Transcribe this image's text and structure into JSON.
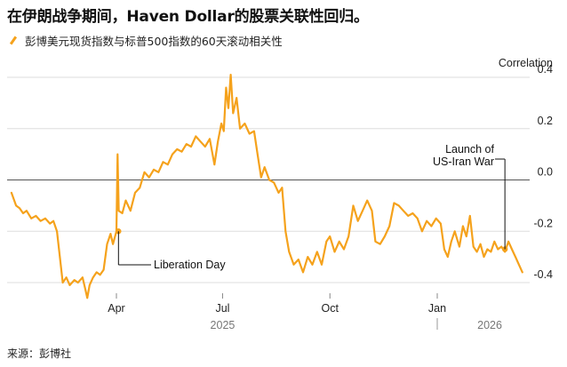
{
  "title": "在伊朗战争期间，Haven Dollar的股票关联性回归。",
  "source": "来源：彭博社",
  "colors": {
    "series": "#f5a21c",
    "grid": "#dddddd",
    "zero": "#555555",
    "text": "#222222"
  },
  "chart_data": {
    "type": "line",
    "y_axis_title": "Correlation",
    "ylim": [
      -0.45,
      0.45
    ],
    "yticks": [
      0.4,
      0.2,
      0.0,
      -0.2,
      -0.4
    ],
    "ytick_labels": [
      "0.4",
      "0.2",
      "0.0",
      "-0.2",
      "-0.4"
    ],
    "xlim": [
      "2025-01-01",
      "2026-03-18"
    ],
    "xticks": [
      {
        "date": "2025-04-01",
        "label": "Apr"
      },
      {
        "date": "2025-07-01",
        "label": "Jul"
      },
      {
        "date": "2025-10-01",
        "label": "Oct"
      },
      {
        "date": "2026-01-01",
        "label": "Jan"
      }
    ],
    "years": [
      {
        "date": "2025-07-01",
        "label": "2025"
      },
      {
        "date": "2026-02-15",
        "label": "2026"
      }
    ],
    "grid": true,
    "series": [
      {
        "name": "彭博美元现货指数与标普500指数的60天滚动相关性",
        "points": [
          [
            "2025-01-01",
            -0.05
          ],
          [
            "2025-01-05",
            -0.1
          ],
          [
            "2025-01-08",
            -0.11
          ],
          [
            "2025-01-11",
            -0.13
          ],
          [
            "2025-01-14",
            -0.12
          ],
          [
            "2025-01-18",
            -0.15
          ],
          [
            "2025-01-22",
            -0.14
          ],
          [
            "2025-01-26",
            -0.16
          ],
          [
            "2025-01-30",
            -0.15
          ],
          [
            "2025-02-03",
            -0.17
          ],
          [
            "2025-02-06",
            -0.16
          ],
          [
            "2025-02-09",
            -0.2
          ],
          [
            "2025-02-12",
            -0.32
          ],
          [
            "2025-02-14",
            -0.4
          ],
          [
            "2025-02-17",
            -0.38
          ],
          [
            "2025-02-20",
            -0.41
          ],
          [
            "2025-02-24",
            -0.39
          ],
          [
            "2025-02-27",
            -0.4
          ],
          [
            "2025-03-03",
            -0.38
          ],
          [
            "2025-03-05",
            -0.42
          ],
          [
            "2025-03-07",
            -0.46
          ],
          [
            "2025-03-09",
            -0.41
          ],
          [
            "2025-03-12",
            -0.38
          ],
          [
            "2025-03-15",
            -0.36
          ],
          [
            "2025-03-18",
            -0.37
          ],
          [
            "2025-03-21",
            -0.35
          ],
          [
            "2025-03-24",
            -0.25
          ],
          [
            "2025-03-27",
            -0.21
          ],
          [
            "2025-03-29",
            -0.25
          ],
          [
            "2025-04-01",
            -0.2
          ],
          [
            "2025-04-02",
            0.1
          ],
          [
            "2025-04-03",
            -0.12
          ],
          [
            "2025-04-06",
            -0.13
          ],
          [
            "2025-04-09",
            -0.08
          ],
          [
            "2025-04-13",
            -0.12
          ],
          [
            "2025-04-17",
            -0.05
          ],
          [
            "2025-04-21",
            -0.03
          ],
          [
            "2025-04-25",
            0.03
          ],
          [
            "2025-04-29",
            0.01
          ],
          [
            "2025-05-03",
            0.04
          ],
          [
            "2025-05-07",
            0.03
          ],
          [
            "2025-05-11",
            0.07
          ],
          [
            "2025-05-15",
            0.06
          ],
          [
            "2025-05-19",
            0.1
          ],
          [
            "2025-05-23",
            0.12
          ],
          [
            "2025-05-27",
            0.11
          ],
          [
            "2025-05-31",
            0.14
          ],
          [
            "2025-06-04",
            0.13
          ],
          [
            "2025-06-08",
            0.17
          ],
          [
            "2025-06-12",
            0.15
          ],
          [
            "2025-06-16",
            0.13
          ],
          [
            "2025-06-20",
            0.16
          ],
          [
            "2025-06-24",
            0.06
          ],
          [
            "2025-06-27",
            0.15
          ],
          [
            "2025-06-30",
            0.22
          ],
          [
            "2025-07-02",
            0.19
          ],
          [
            "2025-07-04",
            0.36
          ],
          [
            "2025-07-06",
            0.28
          ],
          [
            "2025-07-08",
            0.41
          ],
          [
            "2025-07-10",
            0.26
          ],
          [
            "2025-07-13",
            0.32
          ],
          [
            "2025-07-16",
            0.2
          ],
          [
            "2025-07-20",
            0.22
          ],
          [
            "2025-07-24",
            0.18
          ],
          [
            "2025-07-28",
            0.19
          ],
          [
            "2025-07-31",
            0.1
          ],
          [
            "2025-08-03",
            0.01
          ],
          [
            "2025-08-06",
            0.05
          ],
          [
            "2025-08-10",
            0.0
          ],
          [
            "2025-08-14",
            -0.01
          ],
          [
            "2025-08-18",
            -0.05
          ],
          [
            "2025-08-21",
            -0.03
          ],
          [
            "2025-08-24",
            -0.2
          ],
          [
            "2025-08-27",
            -0.28
          ],
          [
            "2025-08-31",
            -0.33
          ],
          [
            "2025-09-04",
            -0.31
          ],
          [
            "2025-09-08",
            -0.36
          ],
          [
            "2025-09-12",
            -0.3
          ],
          [
            "2025-09-16",
            -0.33
          ],
          [
            "2025-09-20",
            -0.28
          ],
          [
            "2025-09-24",
            -0.33
          ],
          [
            "2025-09-28",
            -0.24
          ],
          [
            "2025-10-01",
            -0.22
          ],
          [
            "2025-10-05",
            -0.28
          ],
          [
            "2025-10-09",
            -0.24
          ],
          [
            "2025-10-13",
            -0.27
          ],
          [
            "2025-10-17",
            -0.22
          ],
          [
            "2025-10-21",
            -0.1
          ],
          [
            "2025-10-25",
            -0.16
          ],
          [
            "2025-10-29",
            -0.12
          ],
          [
            "2025-11-02",
            -0.08
          ],
          [
            "2025-11-06",
            -0.12
          ],
          [
            "2025-11-09",
            -0.24
          ],
          [
            "2025-11-13",
            -0.25
          ],
          [
            "2025-11-17",
            -0.22
          ],
          [
            "2025-11-21",
            -0.18
          ],
          [
            "2025-11-25",
            -0.09
          ],
          [
            "2025-11-29",
            -0.1
          ],
          [
            "2025-12-03",
            -0.12
          ],
          [
            "2025-12-07",
            -0.14
          ],
          [
            "2025-12-11",
            -0.13
          ],
          [
            "2025-12-15",
            -0.15
          ],
          [
            "2025-12-19",
            -0.2
          ],
          [
            "2025-12-23",
            -0.16
          ],
          [
            "2025-12-27",
            -0.18
          ],
          [
            "2025-12-31",
            -0.15
          ],
          [
            "2026-01-04",
            -0.17
          ],
          [
            "2026-01-07",
            -0.27
          ],
          [
            "2026-01-10",
            -0.3
          ],
          [
            "2026-01-13",
            -0.24
          ],
          [
            "2026-01-16",
            -0.2
          ],
          [
            "2026-01-20",
            -0.26
          ],
          [
            "2026-01-23",
            -0.18
          ],
          [
            "2026-01-26",
            -0.22
          ],
          [
            "2026-01-29",
            -0.14
          ],
          [
            "2026-02-01",
            -0.26
          ],
          [
            "2026-02-04",
            -0.28
          ],
          [
            "2026-02-07",
            -0.25
          ],
          [
            "2026-02-10",
            -0.3
          ],
          [
            "2026-02-13",
            -0.27
          ],
          [
            "2026-02-16",
            -0.28
          ],
          [
            "2026-02-19",
            -0.24
          ],
          [
            "2026-02-22",
            -0.27
          ],
          [
            "2026-02-25",
            -0.26
          ],
          [
            "2026-02-28",
            -0.28
          ],
          [
            "2026-03-03",
            -0.24
          ],
          [
            "2026-03-06",
            -0.27
          ],
          [
            "2026-03-09",
            -0.3
          ],
          [
            "2026-03-12",
            -0.33
          ],
          [
            "2026-03-15",
            -0.36
          ]
        ]
      }
    ],
    "annotations": [
      {
        "text": "Liberation Day",
        "date": "2025-04-02",
        "value": -0.2
      },
      {
        "lines": [
          "Launch of",
          "US-Iran War"
        ],
        "date": "2026-02-28",
        "value": -0.27
      }
    ]
  }
}
